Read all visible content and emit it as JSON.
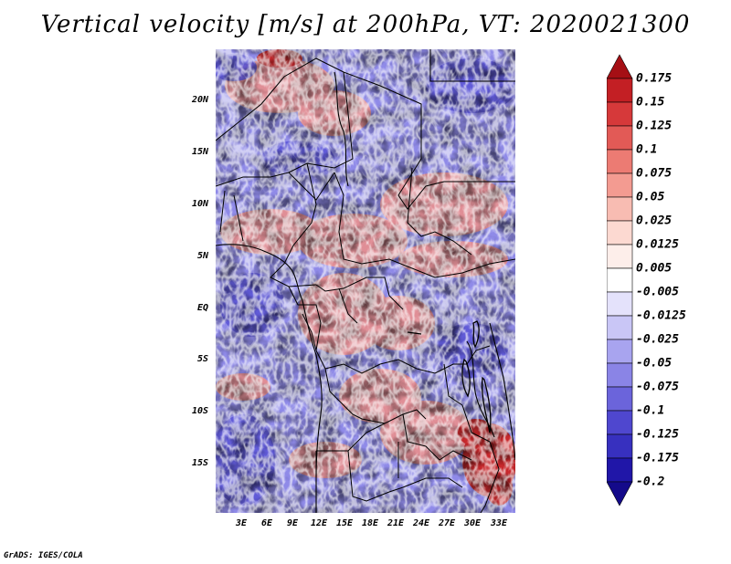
{
  "title": "Vertical velocity [m/s] at 200hPa, VT: 2020021300",
  "credit": "GrADS: IGES/COLA",
  "lat_labels": [
    "20N",
    "15N",
    "10N",
    "5N",
    "EQ",
    "5S",
    "10S",
    "15S"
  ],
  "lon_labels": [
    "3E",
    "6E",
    "9E",
    "12E",
    "15E",
    "18E",
    "21E",
    "24E",
    "27E",
    "30E",
    "33E"
  ],
  "colorbar": {
    "labels": [
      "0.175",
      "0.15",
      "0.125",
      "0.1",
      "0.075",
      "0.05",
      "0.025",
      "0.0125",
      "0.005",
      "-0.005",
      "-0.0125",
      "-0.025",
      "-0.05",
      "-0.075",
      "-0.1",
      "-0.125",
      "-0.175",
      "-0.2"
    ],
    "colors": [
      "#a50f15",
      "#c31f24",
      "#d6393a",
      "#e25a56",
      "#ec7b73",
      "#f39b91",
      "#f8bcb2",
      "#fcd9d1",
      "#fdeeea",
      "#ffffff",
      "#e4e2fb",
      "#c9c6f6",
      "#a8a4ef",
      "#8a84e6",
      "#6b64db",
      "#4f47cf",
      "#3730bf",
      "#2016a8",
      "#140a8a"
    ]
  },
  "accent_colors": {
    "positive": "#d6393a",
    "negative": "#4f47cf"
  }
}
